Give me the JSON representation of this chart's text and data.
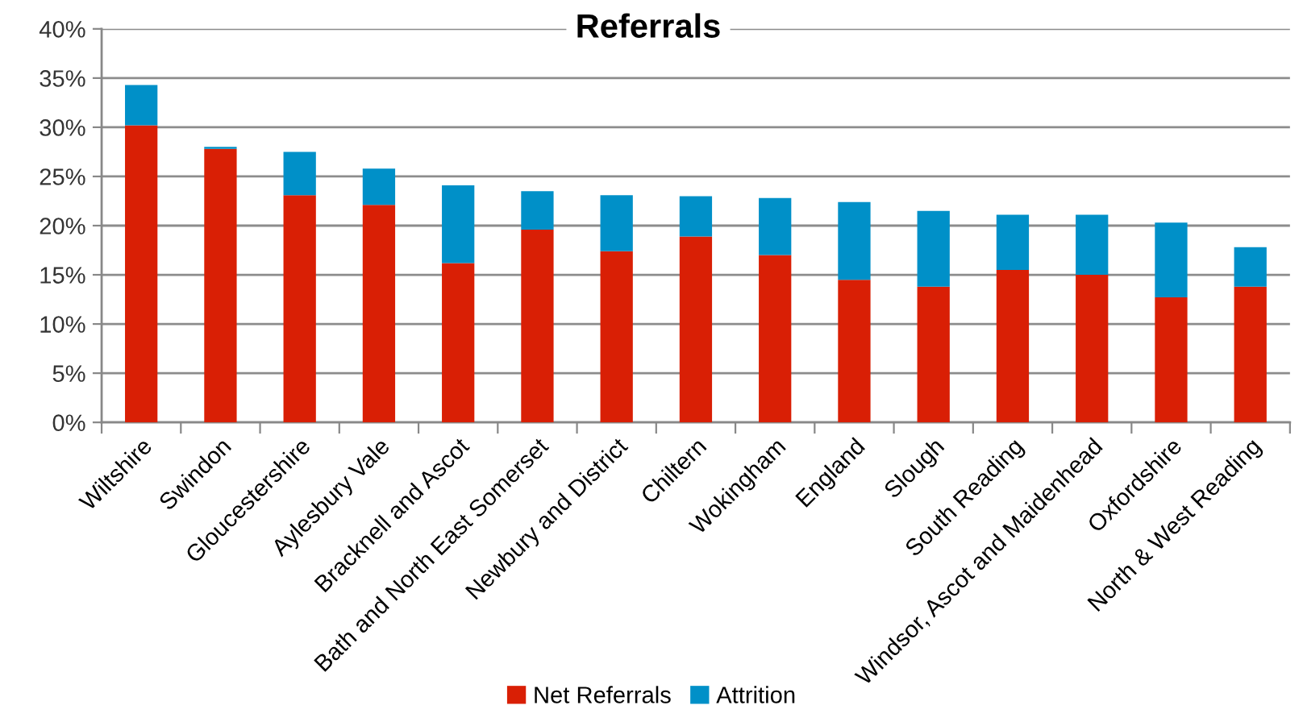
{
  "chart_data": {
    "type": "bar",
    "title": "Referrals",
    "stacked": true,
    "categories": [
      "Wiltshire",
      "Swindon",
      "Gloucestershire",
      "Aylesbury Vale",
      "Bracknell and Ascot",
      "Bath and North East Somerset",
      "Newbury and District",
      "Chiltern",
      "Wokingham",
      "England",
      "Slough",
      "South Reading",
      "Windsor, Ascot and Maidenhead",
      "Oxfordshire",
      "North & West Reading"
    ],
    "series": [
      {
        "name": "Net Referrals",
        "color": "#d91f05",
        "values": [
          30.2,
          27.8,
          23.1,
          22.1,
          16.2,
          19.6,
          17.4,
          18.9,
          17.0,
          14.5,
          13.8,
          15.5,
          15.0,
          12.7,
          13.8
        ]
      },
      {
        "name": "Attrition",
        "color": "#0090c8",
        "values": [
          4.1,
          0.2,
          4.4,
          3.7,
          7.9,
          3.9,
          5.7,
          4.1,
          5.8,
          7.9,
          7.7,
          5.6,
          6.1,
          7.6,
          4.0
        ]
      }
    ],
    "ylim": [
      0,
      40
    ],
    "yticks": [
      {
        "value": 0,
        "label": "0%"
      },
      {
        "value": 5,
        "label": "5%"
      },
      {
        "value": 10,
        "label": "10%"
      },
      {
        "value": 15,
        "label": "15%"
      },
      {
        "value": 20,
        "label": "20%"
      },
      {
        "value": 25,
        "label": "25%"
      },
      {
        "value": 30,
        "label": "30%"
      },
      {
        "value": 35,
        "label": "35%"
      },
      {
        "value": 40,
        "label": "40%"
      }
    ],
    "grid": "y",
    "legend": "bottom"
  }
}
